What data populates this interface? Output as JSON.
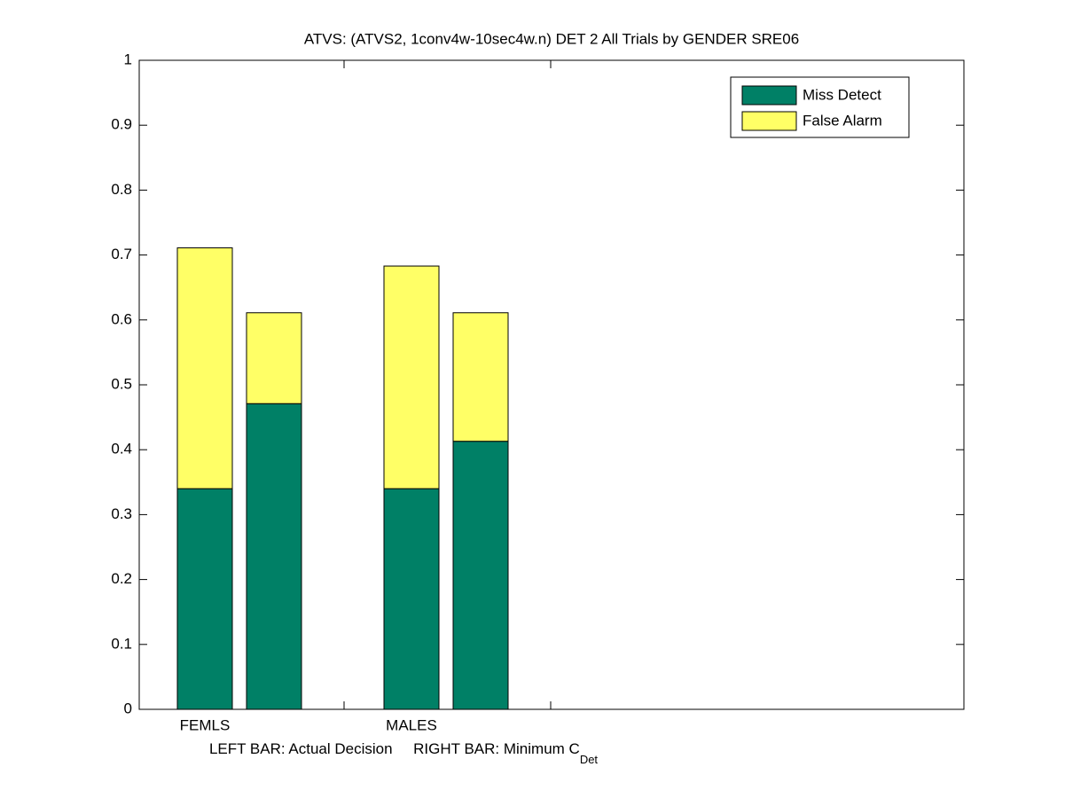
{
  "chart_data": {
    "type": "stacked_bar",
    "title": "ATVS: (ATVS2, 1conv4w-10sec4w.n) DET 2 All Trials by GENDER SRE06",
    "xlabel": "LEFT BAR: Actual Decision     RIGHT BAR: Minimum C",
    "xlabel_subscript": "Det",
    "categories": [
      "FEMLS",
      null,
      "MALES",
      null
    ],
    "series": [
      {
        "name": "Miss Detect",
        "color": "#008066",
        "values": [
          0.34,
          0.471,
          0.34,
          0.413
        ]
      },
      {
        "name": "False Alarm",
        "color": "#ffff66",
        "values": [
          0.371,
          0.14,
          0.343,
          0.198
        ]
      }
    ],
    "ylim": [
      0,
      1
    ],
    "yticks": [
      0,
      0.1,
      0.2,
      0.3,
      0.4,
      0.5,
      0.6,
      0.7,
      0.8,
      0.9,
      1
    ],
    "legend": "upper right"
  }
}
